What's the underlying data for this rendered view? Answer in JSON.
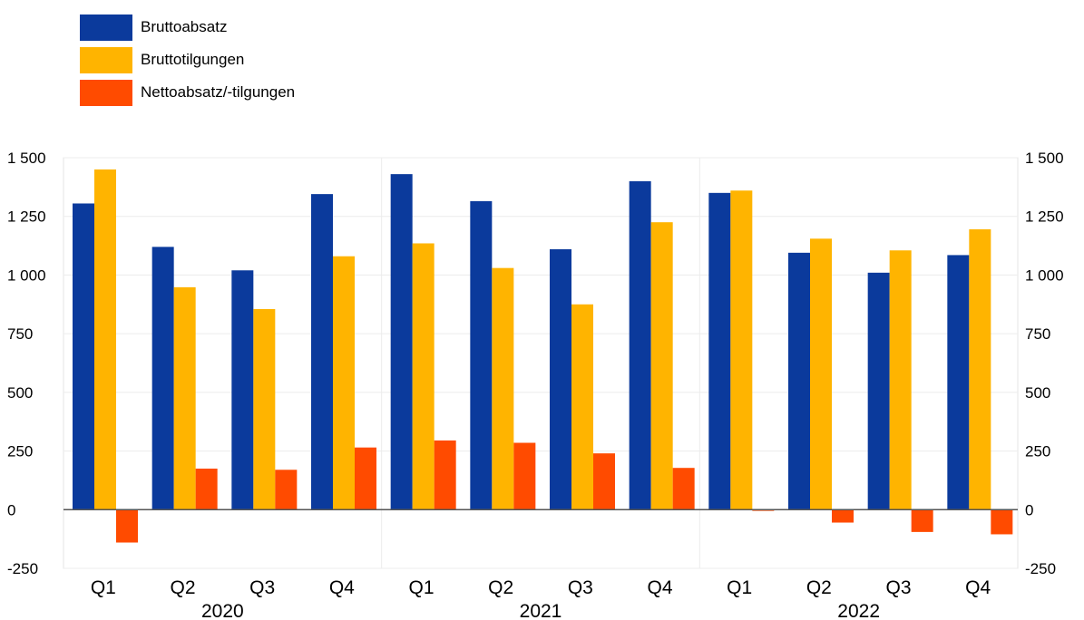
{
  "chart_data": {
    "type": "bar",
    "categories": [
      "Q1",
      "Q2",
      "Q3",
      "Q4",
      "Q1",
      "Q2",
      "Q3",
      "Q4",
      "Q1",
      "Q2",
      "Q3",
      "Q4"
    ],
    "groups": [
      {
        "label": "2020",
        "start": 0,
        "end": 3
      },
      {
        "label": "2021",
        "start": 4,
        "end": 7
      },
      {
        "label": "2022",
        "start": 8,
        "end": 11
      }
    ],
    "series": [
      {
        "name": "Bruttoabsatz",
        "color": "#0b3a9c",
        "values": [
          1305,
          1120,
          1020,
          1345,
          1430,
          1315,
          1110,
          1400,
          1350,
          1095,
          1010,
          1085
        ]
      },
      {
        "name": "Bruttotilgungen",
        "color": "#ffb400",
        "values": [
          1450,
          948,
          855,
          1080,
          1135,
          1030,
          875,
          1225,
          1360,
          1155,
          1105,
          1195
        ]
      },
      {
        "name": "Nettoabsatz/-tilgungen",
        "color": "#ff4b00",
        "values": [
          -140,
          175,
          170,
          265,
          295,
          285,
          240,
          178,
          -5,
          -55,
          -95,
          -105
        ]
      }
    ],
    "ylim": [
      -250,
      1500
    ],
    "yticks": [
      -250,
      0,
      250,
      500,
      750,
      1000,
      1250,
      1500
    ],
    "ytick_labels": [
      "-250",
      "0",
      "250",
      "500",
      "750",
      "1 000",
      "1 250",
      "1 500"
    ],
    "grid": true,
    "legend_position": "top-left",
    "title": "",
    "xlabel": "",
    "ylabel": ""
  }
}
